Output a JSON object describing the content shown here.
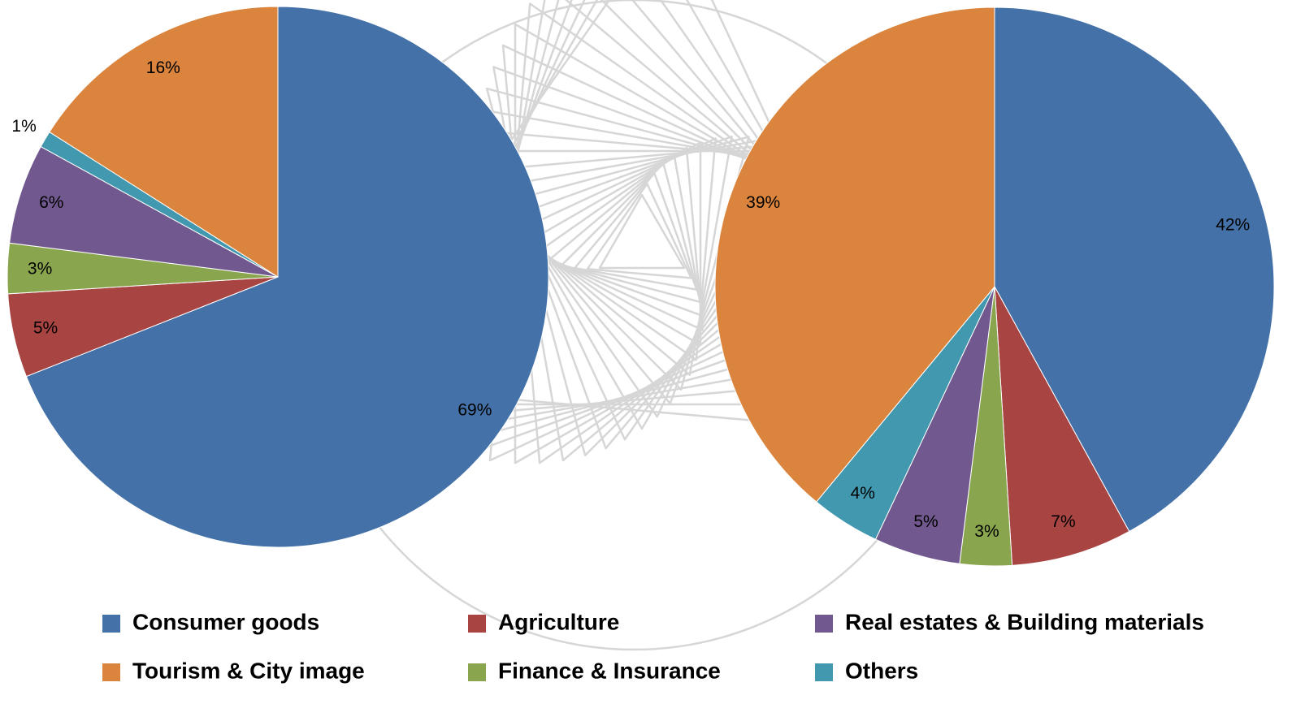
{
  "chart_data": [
    {
      "type": "pie",
      "values": [
        69,
        5,
        3,
        6,
        1,
        16
      ],
      "value_labels": [
        "69%",
        "5%",
        "3%",
        "6%",
        "1%",
        "16%"
      ]
    },
    {
      "type": "pie",
      "values": [
        42,
        7,
        3,
        5,
        4,
        39
      ],
      "value_labels": [
        "42%",
        "7%",
        "3%",
        "5%",
        "4%",
        "39%"
      ]
    }
  ],
  "legend": {
    "items": [
      {
        "name": "Consumer goods",
        "color": "#4472a8"
      },
      {
        "name": "Agriculture",
        "color": "#a84543"
      },
      {
        "name": "Finance & Insurance",
        "color": "#89a54e"
      },
      {
        "name": "Real estates & Building materials",
        "color": "#71588f"
      },
      {
        "name": "Others",
        "color": "#4198af"
      },
      {
        "name": "Tourism & City image",
        "color": "#db843d"
      }
    ]
  }
}
